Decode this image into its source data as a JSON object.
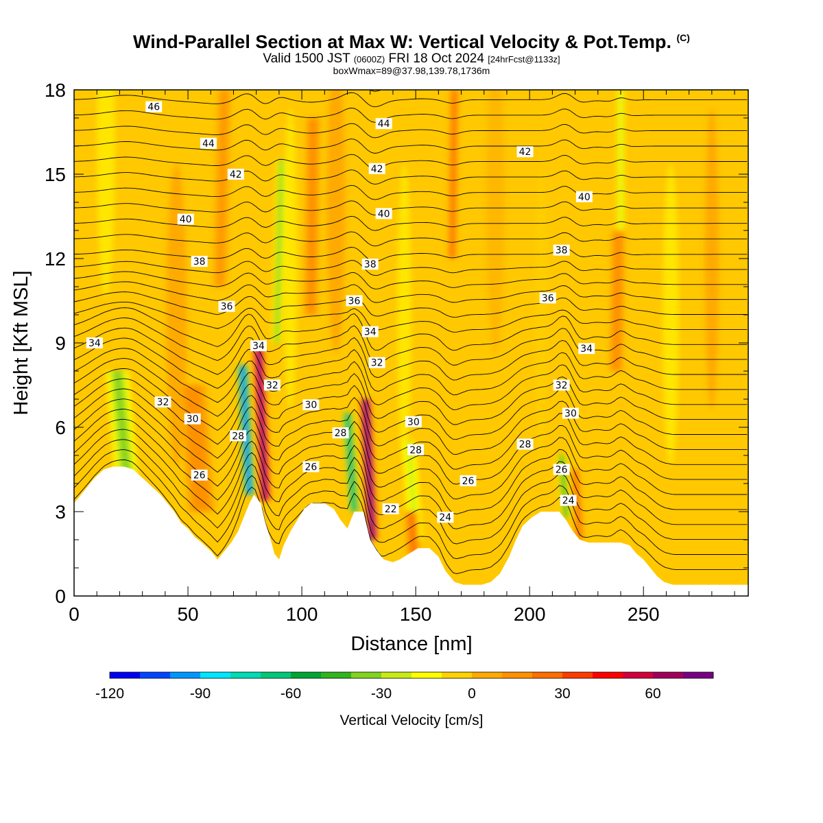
{
  "title": {
    "main": "Wind-Parallel Section at Max W: Vertical Velocity & Pot.Temp.",
    "main_tag": "(C)",
    "valid_prefix": "Valid 1500 JST",
    "valid_utc": "(0600Z)",
    "valid_date": "FRI 18 Oct 2024",
    "valid_forecast": "[24hrFcst@1133z]",
    "subtitle": "boxWmax=89@37.98,139.78,1736m"
  },
  "colors": {
    "background_fill": "#ffc800",
    "terrain": "#ffffff",
    "contour_line": "#000000"
  },
  "chart_data": {
    "type": "heatmap",
    "xlabel": "Distance [nm]",
    "ylabel": "Height [Kft MSL]",
    "xlim": [
      0,
      296
    ],
    "ylim": [
      0,
      18
    ],
    "x_ticks": [
      0,
      50,
      100,
      150,
      200,
      250
    ],
    "y_ticks": [
      0,
      3,
      6,
      9,
      12,
      15,
      18
    ],
    "colorbar": {
      "title": "Vertical Velocity [cm/s]",
      "range": [
        -120,
        80
      ],
      "step": 10,
      "tick_values": [
        -120,
        -90,
        -60,
        -30,
        0,
        30,
        60
      ],
      "tick_labels": [
        "-120",
        "-90",
        "-60",
        "-30",
        "0",
        "30",
        "60"
      ],
      "colors": [
        "#0000f0",
        "#0046ff",
        "#0096ff",
        "#00e6ff",
        "#00dcb4",
        "#00c878",
        "#00a532",
        "#32b41e",
        "#82d21e",
        "#c8eb14",
        "#ffff00",
        "#ffd200",
        "#ffaa00",
        "#ff9100",
        "#ff6e00",
        "#ff3c00",
        "#ff0000",
        "#d2003c",
        "#a0005a",
        "#780082"
      ]
    },
    "terrain_kft": [
      [
        0,
        3.3
      ],
      [
        3,
        3.6
      ],
      [
        6,
        3.9
      ],
      [
        9,
        4.2
      ],
      [
        13,
        4.5
      ],
      [
        17,
        4.6
      ],
      [
        22,
        4.6
      ],
      [
        26,
        4.5
      ],
      [
        30,
        4.2
      ],
      [
        34,
        3.9
      ],
      [
        38,
        3.6
      ],
      [
        41,
        3.3
      ],
      [
        44,
        3.0
      ],
      [
        47,
        2.6
      ],
      [
        50,
        2.4
      ],
      [
        53,
        2.1
      ],
      [
        56,
        1.9
      ],
      [
        60,
        1.6
      ],
      [
        63,
        1.3
      ],
      [
        66,
        1.6
      ],
      [
        69,
        1.9
      ],
      [
        72,
        2.3
      ],
      [
        75,
        2.9
      ],
      [
        77,
        3.3
      ],
      [
        79,
        3.6
      ],
      [
        82,
        3.3
      ],
      [
        84,
        2.6
      ],
      [
        86,
        2.1
      ],
      [
        88,
        1.5
      ],
      [
        90,
        1.3
      ],
      [
        92,
        1.8
      ],
      [
        95,
        2.3
      ],
      [
        98,
        2.7
      ],
      [
        101,
        3.1
      ],
      [
        104,
        3.3
      ],
      [
        110,
        3.3
      ],
      [
        114,
        3.1
      ],
      [
        117,
        2.7
      ],
      [
        120,
        2.4
      ],
      [
        123,
        3.0
      ],
      [
        127,
        3.0
      ],
      [
        130,
        2.0
      ],
      [
        133,
        1.6
      ],
      [
        136,
        1.3
      ],
      [
        140,
        1.2
      ],
      [
        143,
        1.3
      ],
      [
        147,
        1.5
      ],
      [
        151,
        1.7
      ],
      [
        156,
        1.7
      ],
      [
        160,
        1.4
      ],
      [
        163,
        0.9
      ],
      [
        167,
        0.5
      ],
      [
        171,
        0.4
      ],
      [
        175,
        0.4
      ],
      [
        179,
        0.4
      ],
      [
        183,
        0.5
      ],
      [
        187,
        0.8
      ],
      [
        191,
        1.4
      ],
      [
        194,
        2.0
      ],
      [
        197,
        2.5
      ],
      [
        201,
        2.8
      ],
      [
        205,
        3.0
      ],
      [
        210,
        3.0
      ],
      [
        213,
        3.0
      ],
      [
        216,
        2.7
      ],
      [
        219,
        2.3
      ],
      [
        222,
        2.0
      ],
      [
        226,
        1.9
      ],
      [
        231,
        1.9
      ],
      [
        236,
        1.9
      ],
      [
        240,
        1.9
      ],
      [
        244,
        1.8
      ],
      [
        247,
        1.5
      ],
      [
        250,
        1.3
      ],
      [
        253,
        1.0
      ],
      [
        256,
        0.7
      ],
      [
        259,
        0.5
      ],
      [
        263,
        0.4
      ],
      [
        270,
        0.4
      ],
      [
        280,
        0.4
      ],
      [
        290,
        0.4
      ],
      [
        296,
        0.4
      ]
    ],
    "velocity_features": [
      {
        "x": 23,
        "z0": 4.3,
        "z1": 8.0,
        "lean": 4,
        "w": -32,
        "width": 5
      },
      {
        "x": 56,
        "z0": 3.0,
        "z1": 7.5,
        "lean": 4,
        "w": 18,
        "width": 6
      },
      {
        "x": 77,
        "z0": 3.6,
        "z1": 8.2,
        "lean": 3,
        "w": -100,
        "width": 2.5
      },
      {
        "x": 84,
        "z0": 3.4,
        "z1": 8.8,
        "lean": 3,
        "w": 75,
        "width": 2.5
      },
      {
        "x": 89,
        "z0": 9.0,
        "z1": 15.5,
        "lean": -2,
        "w": -40,
        "width": 2
      },
      {
        "x": 123,
        "z0": 3.0,
        "z1": 6.5,
        "lean": 3,
        "w": -70,
        "width": 2.5
      },
      {
        "x": 131,
        "z0": 2.0,
        "z1": 7.0,
        "lean": 3,
        "w": 80,
        "width": 2.5
      },
      {
        "x": 150,
        "z0": 2.0,
        "z1": 5.5,
        "lean": 3,
        "w": -30,
        "width": 3
      },
      {
        "x": 149,
        "z0": 1.5,
        "z1": 3.0,
        "lean": 1,
        "w": 25,
        "width": 3
      },
      {
        "x": 166,
        "z0": 12.0,
        "z1": 18.0,
        "lean": -1,
        "w": 25,
        "width": 2
      },
      {
        "x": 216,
        "z0": 2.8,
        "z1": 5.0,
        "lean": 2,
        "w": -50,
        "width": 2
      },
      {
        "x": 222,
        "z0": 2.0,
        "z1": 4.5,
        "lean": 2,
        "w": 25,
        "width": 2
      },
      {
        "x": 240,
        "z0": 13.0,
        "z1": 18.0,
        "lean": 0,
        "w": -30,
        "width": 1.5
      },
      {
        "x": 104,
        "z0": 10.0,
        "z1": 17.0,
        "lean": -1,
        "w": 18,
        "width": 3
      },
      {
        "x": 64,
        "z0": 11.0,
        "z1": 18.0,
        "lean": -2,
        "w": 15,
        "width": 3
      },
      {
        "x": 238,
        "z0": 8.0,
        "z1": 13.0,
        "lean": -1,
        "w": 18,
        "width": 3
      }
    ],
    "contour_labels": [
      {
        "text": "46",
        "x": 35,
        "z": 17.4
      },
      {
        "text": "44",
        "x": 59,
        "z": 16.1
      },
      {
        "text": "42",
        "x": 71,
        "z": 15.0
      },
      {
        "text": "40",
        "x": 49,
        "z": 13.4
      },
      {
        "text": "38",
        "x": 55,
        "z": 11.9
      },
      {
        "text": "36",
        "x": 67,
        "z": 10.3
      },
      {
        "text": "34",
        "x": 9,
        "z": 9.0
      },
      {
        "text": "34",
        "x": 81,
        "z": 8.9
      },
      {
        "text": "32",
        "x": 39,
        "z": 6.9
      },
      {
        "text": "32",
        "x": 87,
        "z": 7.5
      },
      {
        "text": "30",
        "x": 52,
        "z": 6.3
      },
      {
        "text": "30",
        "x": 104,
        "z": 6.8
      },
      {
        "text": "28",
        "x": 72,
        "z": 5.7
      },
      {
        "text": "28",
        "x": 117,
        "z": 5.8
      },
      {
        "text": "26",
        "x": 55,
        "z": 4.3
      },
      {
        "text": "26",
        "x": 104,
        "z": 4.6
      },
      {
        "text": "44",
        "x": 136,
        "z": 16.8
      },
      {
        "text": "42",
        "x": 133,
        "z": 15.2
      },
      {
        "text": "40",
        "x": 136,
        "z": 13.6
      },
      {
        "text": "38",
        "x": 130,
        "z": 11.8
      },
      {
        "text": "36",
        "x": 123,
        "z": 10.5
      },
      {
        "text": "34",
        "x": 130,
        "z": 9.4
      },
      {
        "text": "32",
        "x": 133,
        "z": 8.3
      },
      {
        "text": "30",
        "x": 149,
        "z": 6.2
      },
      {
        "text": "28",
        "x": 150,
        "z": 5.2
      },
      {
        "text": "22",
        "x": 139,
        "z": 3.1
      },
      {
        "text": "24",
        "x": 163,
        "z": 2.8
      },
      {
        "text": "26",
        "x": 173,
        "z": 4.1
      },
      {
        "text": "42",
        "x": 198,
        "z": 15.8
      },
      {
        "text": "40",
        "x": 224,
        "z": 14.2
      },
      {
        "text": "38",
        "x": 214,
        "z": 12.3
      },
      {
        "text": "36",
        "x": 208,
        "z": 10.6
      },
      {
        "text": "34",
        "x": 225,
        "z": 8.8
      },
      {
        "text": "32",
        "x": 214,
        "z": 7.5
      },
      {
        "text": "30",
        "x": 218,
        "z": 6.5
      },
      {
        "text": "28",
        "x": 198,
        "z": 5.4
      },
      {
        "text": "26",
        "x": 214,
        "z": 4.5
      },
      {
        "text": "24",
        "x": 217,
        "z": 3.4
      }
    ]
  }
}
